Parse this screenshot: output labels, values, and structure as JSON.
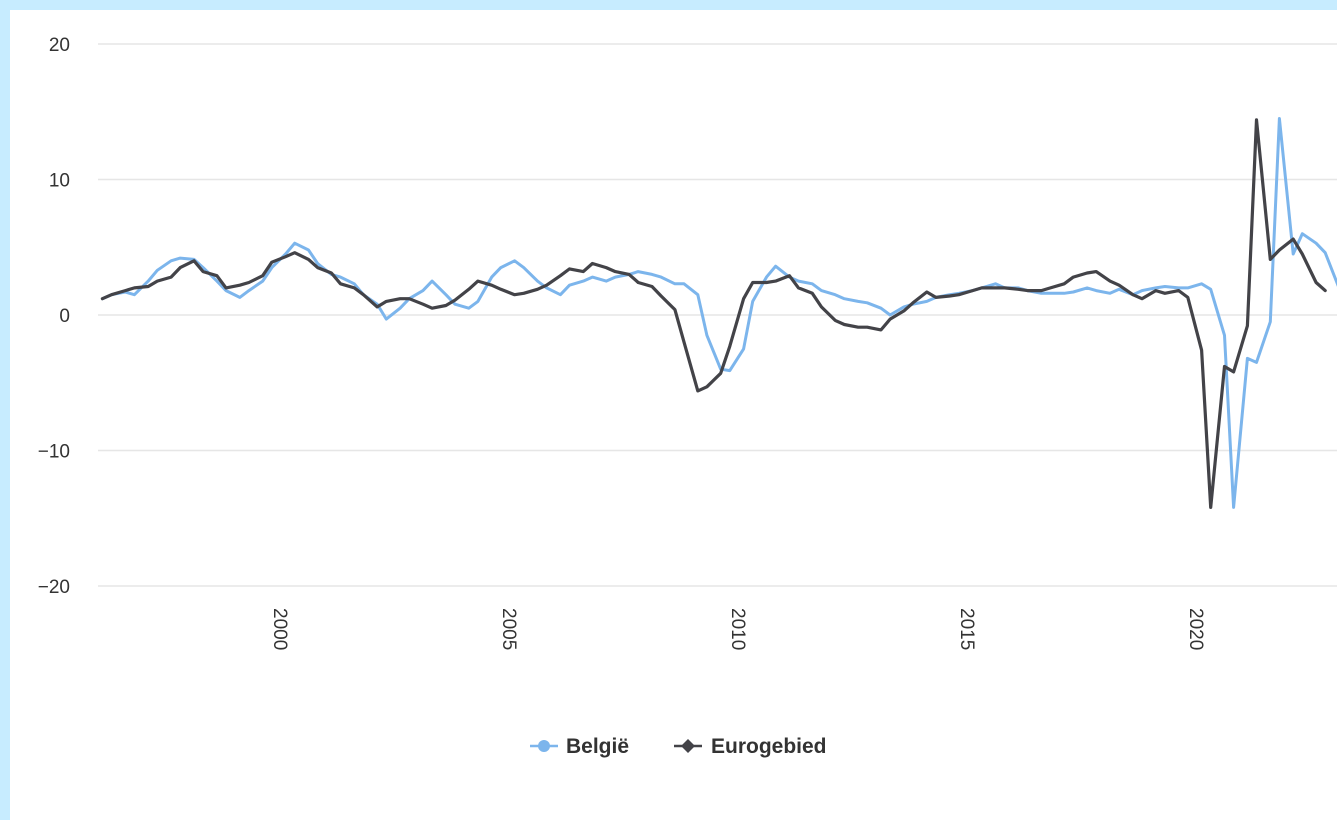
{
  "chart_data": {
    "type": "line",
    "title": "",
    "xlabel": "",
    "ylabel": "",
    "xlim": [
      1996,
      2023
    ],
    "ylim": [
      -20,
      20
    ],
    "yticks": [
      20,
      10,
      0,
      -10,
      -20
    ],
    "ytick_labels": [
      "20",
      "10",
      "0",
      "−10",
      "−20"
    ],
    "xticks": [
      2000,
      2005,
      2010,
      2015,
      2020
    ],
    "xtick_labels": [
      "2000",
      "2005",
      "2010",
      "2015",
      "2020"
    ],
    "grid": "horizontal",
    "legend_position": "bottom-center",
    "series": [
      {
        "name": "België",
        "color": "#7cb5ec",
        "marker": "circle",
        "points": [
          [
            1996.1,
            1.2
          ],
          [
            1996.3,
            1.5
          ],
          [
            1996.6,
            1.7
          ],
          [
            1996.8,
            1.5
          ],
          [
            1997.1,
            2.5
          ],
          [
            1997.3,
            3.3
          ],
          [
            1997.6,
            4.0
          ],
          [
            1997.8,
            4.2
          ],
          [
            1998.1,
            4.1
          ],
          [
            1998.3,
            3.5
          ],
          [
            1998.6,
            2.5
          ],
          [
            1998.8,
            1.8
          ],
          [
            1999.1,
            1.3
          ],
          [
            1999.3,
            1.8
          ],
          [
            1999.6,
            2.5
          ],
          [
            1999.8,
            3.5
          ],
          [
            2000.1,
            4.5
          ],
          [
            2000.3,
            5.3
          ],
          [
            2000.6,
            4.8
          ],
          [
            2000.8,
            3.8
          ],
          [
            2001.1,
            3.0
          ],
          [
            2001.3,
            2.8
          ],
          [
            2001.6,
            2.3
          ],
          [
            2001.8,
            1.5
          ],
          [
            2002.1,
            0.8
          ],
          [
            2002.3,
            -0.3
          ],
          [
            2002.6,
            0.5
          ],
          [
            2002.8,
            1.2
          ],
          [
            2003.1,
            1.8
          ],
          [
            2003.3,
            2.5
          ],
          [
            2003.6,
            1.5
          ],
          [
            2003.8,
            0.8
          ],
          [
            2004.1,
            0.5
          ],
          [
            2004.3,
            1.0
          ],
          [
            2004.6,
            2.8
          ],
          [
            2004.8,
            3.5
          ],
          [
            2005.1,
            4.0
          ],
          [
            2005.3,
            3.5
          ],
          [
            2005.6,
            2.5
          ],
          [
            2005.8,
            2.0
          ],
          [
            2006.1,
            1.5
          ],
          [
            2006.3,
            2.2
          ],
          [
            2006.6,
            2.5
          ],
          [
            2006.8,
            2.8
          ],
          [
            2007.1,
            2.5
          ],
          [
            2007.3,
            2.8
          ],
          [
            2007.6,
            3.0
          ],
          [
            2007.8,
            3.2
          ],
          [
            2008.1,
            3.0
          ],
          [
            2008.3,
            2.8
          ],
          [
            2008.6,
            2.3
          ],
          [
            2008.8,
            2.3
          ],
          [
            2009.1,
            1.5
          ],
          [
            2009.3,
            -1.5
          ],
          [
            2009.6,
            -4.0
          ],
          [
            2009.8,
            -4.1
          ],
          [
            2010.1,
            -2.5
          ],
          [
            2010.3,
            1.0
          ],
          [
            2010.6,
            2.8
          ],
          [
            2010.8,
            3.6
          ],
          [
            2011.1,
            2.8
          ],
          [
            2011.3,
            2.5
          ],
          [
            2011.6,
            2.3
          ],
          [
            2011.8,
            1.8
          ],
          [
            2012.1,
            1.5
          ],
          [
            2012.3,
            1.2
          ],
          [
            2012.6,
            1.0
          ],
          [
            2012.8,
            0.9
          ],
          [
            2013.1,
            0.5
          ],
          [
            2013.3,
            0.0
          ],
          [
            2013.6,
            0.6
          ],
          [
            2013.8,
            0.8
          ],
          [
            2014.1,
            1.0
          ],
          [
            2014.3,
            1.3
          ],
          [
            2014.6,
            1.5
          ],
          [
            2014.8,
            1.6
          ],
          [
            2015.1,
            1.8
          ],
          [
            2015.3,
            2.0
          ],
          [
            2015.6,
            2.3
          ],
          [
            2015.8,
            2.0
          ],
          [
            2016.1,
            2.0
          ],
          [
            2016.3,
            1.8
          ],
          [
            2016.6,
            1.6
          ],
          [
            2016.8,
            1.6
          ],
          [
            2017.1,
            1.6
          ],
          [
            2017.3,
            1.7
          ],
          [
            2017.6,
            2.0
          ],
          [
            2017.8,
            1.8
          ],
          [
            2018.1,
            1.6
          ],
          [
            2018.3,
            1.9
          ],
          [
            2018.6,
            1.5
          ],
          [
            2018.8,
            1.8
          ],
          [
            2019.1,
            2.0
          ],
          [
            2019.3,
            2.1
          ],
          [
            2019.6,
            2.0
          ],
          [
            2019.8,
            2.0
          ],
          [
            2020.1,
            2.3
          ],
          [
            2020.3,
            1.9
          ],
          [
            2020.6,
            -1.5
          ],
          [
            2020.8,
            -14.2
          ],
          [
            2021.1,
            -3.2
          ],
          [
            2021.3,
            -3.5
          ],
          [
            2021.6,
            -0.5
          ],
          [
            2021.8,
            14.5
          ],
          [
            2022.1,
            4.5
          ],
          [
            2022.3,
            6.0
          ],
          [
            2022.6,
            5.3
          ],
          [
            2022.8,
            4.6
          ],
          [
            2023.1,
            2.0
          ],
          [
            2023.3,
            1.6
          ]
        ]
      },
      {
        "name": "Eurogebied",
        "color": "#434348",
        "marker": "diamond",
        "points": [
          [
            1996.1,
            1.2
          ],
          [
            1996.3,
            1.5
          ],
          [
            1996.6,
            1.8
          ],
          [
            1996.8,
            2.0
          ],
          [
            1997.1,
            2.1
          ],
          [
            1997.3,
            2.5
          ],
          [
            1997.6,
            2.8
          ],
          [
            1997.8,
            3.5
          ],
          [
            1998.1,
            4.0
          ],
          [
            1998.3,
            3.2
          ],
          [
            1998.6,
            2.9
          ],
          [
            1998.8,
            2.0
          ],
          [
            1999.1,
            2.2
          ],
          [
            1999.3,
            2.4
          ],
          [
            1999.6,
            2.9
          ],
          [
            1999.8,
            3.9
          ],
          [
            2000.1,
            4.3
          ],
          [
            2000.3,
            4.6
          ],
          [
            2000.6,
            4.1
          ],
          [
            2000.8,
            3.5
          ],
          [
            2001.1,
            3.1
          ],
          [
            2001.3,
            2.3
          ],
          [
            2001.6,
            2.0
          ],
          [
            2001.8,
            1.5
          ],
          [
            2002.1,
            0.6
          ],
          [
            2002.3,
            1.0
          ],
          [
            2002.6,
            1.2
          ],
          [
            2002.8,
            1.2
          ],
          [
            2003.1,
            0.8
          ],
          [
            2003.3,
            0.5
          ],
          [
            2003.6,
            0.7
          ],
          [
            2003.8,
            1.1
          ],
          [
            2004.1,
            1.9
          ],
          [
            2004.3,
            2.5
          ],
          [
            2004.6,
            2.2
          ],
          [
            2004.8,
            1.9
          ],
          [
            2005.1,
            1.5
          ],
          [
            2005.3,
            1.6
          ],
          [
            2005.6,
            1.9
          ],
          [
            2005.8,
            2.2
          ],
          [
            2006.1,
            2.9
          ],
          [
            2006.3,
            3.4
          ],
          [
            2006.6,
            3.2
          ],
          [
            2006.8,
            3.8
          ],
          [
            2007.1,
            3.5
          ],
          [
            2007.3,
            3.2
          ],
          [
            2007.6,
            3.0
          ],
          [
            2007.8,
            2.4
          ],
          [
            2008.1,
            2.1
          ],
          [
            2008.3,
            1.4
          ],
          [
            2008.6,
            0.4
          ],
          [
            2008.8,
            -2.0
          ],
          [
            2009.1,
            -5.6
          ],
          [
            2009.3,
            -5.3
          ],
          [
            2009.6,
            -4.3
          ],
          [
            2009.8,
            -2.3
          ],
          [
            2010.1,
            1.2
          ],
          [
            2010.3,
            2.4
          ],
          [
            2010.6,
            2.4
          ],
          [
            2010.8,
            2.5
          ],
          [
            2011.1,
            2.9
          ],
          [
            2011.3,
            2.0
          ],
          [
            2011.6,
            1.6
          ],
          [
            2011.8,
            0.6
          ],
          [
            2012.1,
            -0.4
          ],
          [
            2012.3,
            -0.7
          ],
          [
            2012.6,
            -0.9
          ],
          [
            2012.8,
            -0.9
          ],
          [
            2013.1,
            -1.1
          ],
          [
            2013.3,
            -0.3
          ],
          [
            2013.6,
            0.3
          ],
          [
            2013.8,
            0.9
          ],
          [
            2014.1,
            1.7
          ],
          [
            2014.3,
            1.3
          ],
          [
            2014.6,
            1.4
          ],
          [
            2014.8,
            1.5
          ],
          [
            2015.1,
            1.8
          ],
          [
            2015.3,
            2.0
          ],
          [
            2015.6,
            2.0
          ],
          [
            2015.8,
            2.0
          ],
          [
            2016.1,
            1.9
          ],
          [
            2016.3,
            1.8
          ],
          [
            2016.6,
            1.8
          ],
          [
            2016.8,
            2.0
          ],
          [
            2017.1,
            2.3
          ],
          [
            2017.3,
            2.8
          ],
          [
            2017.6,
            3.1
          ],
          [
            2017.8,
            3.2
          ],
          [
            2018.1,
            2.5
          ],
          [
            2018.3,
            2.2
          ],
          [
            2018.6,
            1.5
          ],
          [
            2018.8,
            1.2
          ],
          [
            2019.1,
            1.8
          ],
          [
            2019.3,
            1.6
          ],
          [
            2019.6,
            1.8
          ],
          [
            2019.8,
            1.3
          ],
          [
            2020.1,
            -2.6
          ],
          [
            2020.3,
            -14.2
          ],
          [
            2020.6,
            -3.8
          ],
          [
            2020.8,
            -4.2
          ],
          [
            2021.1,
            -0.8
          ],
          [
            2021.3,
            14.4
          ],
          [
            2021.6,
            4.1
          ],
          [
            2021.8,
            4.8
          ],
          [
            2022.1,
            5.6
          ],
          [
            2022.3,
            4.5
          ],
          [
            2022.6,
            2.4
          ],
          [
            2022.8,
            1.8
          ]
        ]
      }
    ]
  }
}
